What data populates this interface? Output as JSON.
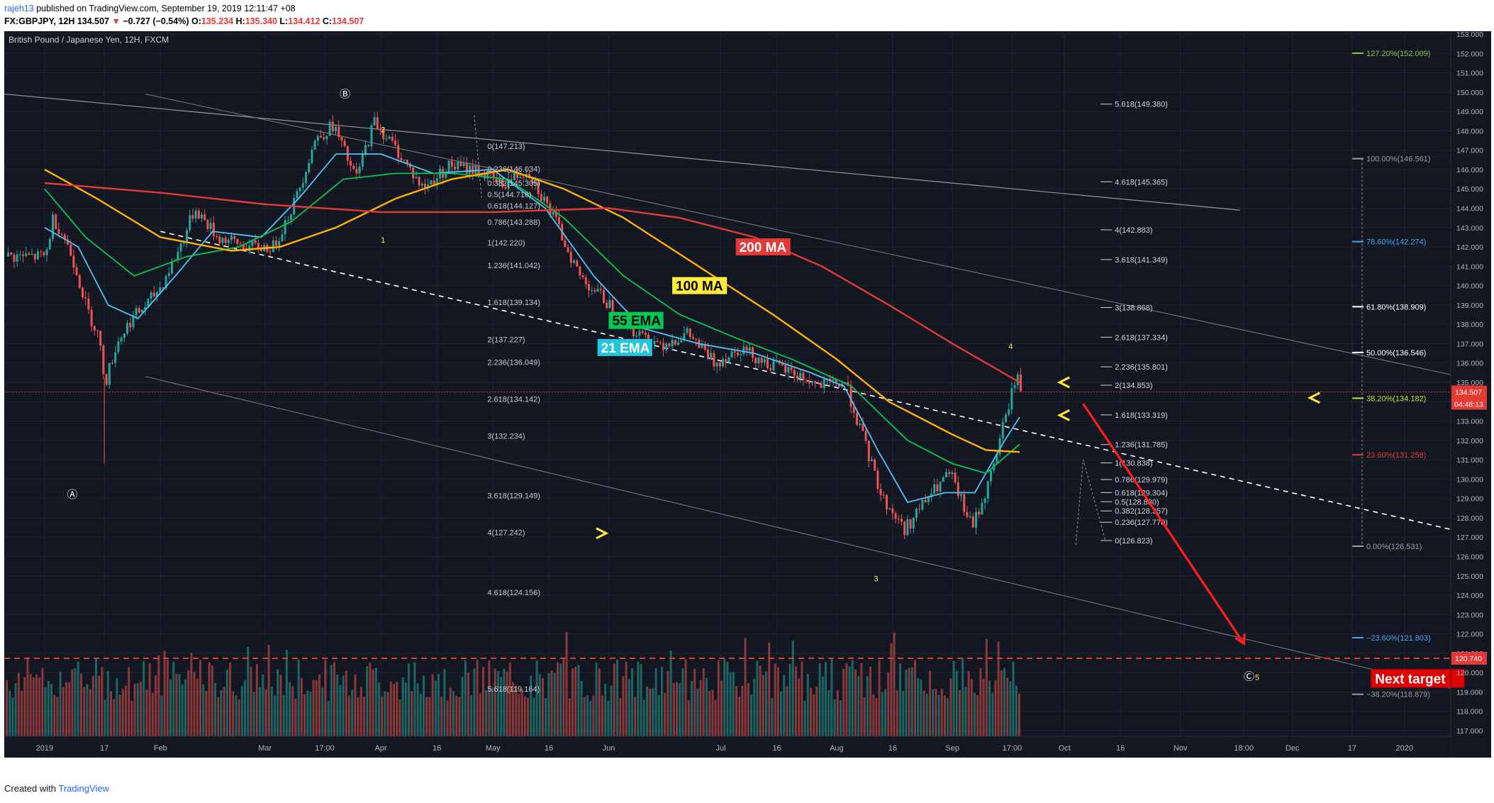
{
  "header": {
    "author": "rajeh13",
    "published": "published on TradingView.com, September 19, 2019 12:11:47 +08",
    "symbol": "FX:GBPJPY, 12H",
    "last": "134.507",
    "change_arrow": "▼",
    "change": "−0.727 (−0.54%)",
    "o_label": "O:",
    "o": "135.234",
    "h_label": "H:",
    "h": "135.340",
    "l_label": "L:",
    "l": "134.412",
    "c_label": "C:",
    "c": "134.507"
  },
  "footer": {
    "created": "Created with",
    "brand": "TradingView"
  },
  "chart_data": {
    "type": "candlestick",
    "title": "British Pound / Japanese Yen, 12H, FXCM",
    "ylim": [
      117,
      153
    ],
    "y_ticks": [
      "153.000",
      "152.000",
      "151.000",
      "150.000",
      "149.000",
      "148.000",
      "147.000",
      "146.000",
      "145.000",
      "144.000",
      "143.000",
      "142.000",
      "141.000",
      "140.000",
      "139.000",
      "138.000",
      "137.000",
      "136.000",
      "135.000",
      "134.000",
      "133.000",
      "132.000",
      "131.000",
      "130.000",
      "129.000",
      "128.000",
      "127.000",
      "126.000",
      "125.000",
      "124.000",
      "123.000",
      "122.000",
      "121.000",
      "120.000",
      "119.000",
      "118.000",
      "117.000"
    ],
    "x_ticks": [
      "2019",
      "17",
      "Feb",
      "Mar",
      "17:00",
      "Apr",
      "16",
      "May",
      "16",
      "Jun",
      "Jul",
      "16",
      "Aug",
      "16",
      "Sep",
      "17:00",
      "Oct",
      "16",
      "Nov",
      "18:00",
      "Dec",
      "17",
      "2020"
    ],
    "price_path": [
      {
        "x": "2019-01-01",
        "y": 141.5
      },
      {
        "x": "2019-01-03",
        "y": 143.5
      },
      {
        "x": "2019-01-06",
        "y": 142.5
      },
      {
        "x": "2019-01-09",
        "y": 141.0
      },
      {
        "x": "2019-01-12",
        "y": 138.8
      },
      {
        "x": "2019-01-15",
        "y": 137.5
      },
      {
        "x": "2019-01-17",
        "y": 135.0
      },
      {
        "x": "2019-01-20",
        "y": 137.0
      },
      {
        "x": "2019-01-24",
        "y": 138.3
      },
      {
        "x": "2019-01-28",
        "y": 139.0
      },
      {
        "x": "2019-02-01",
        "y": 140.0
      },
      {
        "x": "2019-02-06",
        "y": 142.0
      },
      {
        "x": "2019-02-10",
        "y": 144.0
      },
      {
        "x": "2019-02-16",
        "y": 142.5
      },
      {
        "x": "2019-02-24",
        "y": 142.0
      },
      {
        "x": "2019-03-03",
        "y": 142.0
      },
      {
        "x": "2019-03-09",
        "y": 144.5
      },
      {
        "x": "2019-03-14",
        "y": 147.5
      },
      {
        "x": "2019-03-19",
        "y": 148.3
      },
      {
        "x": "2019-03-25",
        "y": 145.5
      },
      {
        "x": "2019-03-30",
        "y": 148.5
      },
      {
        "x": "2019-04-05",
        "y": 147.0
      },
      {
        "x": "2019-04-12",
        "y": 145.0
      },
      {
        "x": "2019-04-19",
        "y": 146.2
      },
      {
        "x": "2019-04-26",
        "y": 146.0
      },
      {
        "x": "2019-05-03",
        "y": 145.2
      },
      {
        "x": "2019-05-10",
        "y": 146.0
      },
      {
        "x": "2019-05-17",
        "y": 143.5
      },
      {
        "x": "2019-05-24",
        "y": 140.5
      },
      {
        "x": "2019-06-01",
        "y": 139.0
      },
      {
        "x": "2019-06-08",
        "y": 137.5
      },
      {
        "x": "2019-06-15",
        "y": 137.0
      },
      {
        "x": "2019-06-22",
        "y": 137.5
      },
      {
        "x": "2019-06-29",
        "y": 136.0
      },
      {
        "x": "2019-07-06",
        "y": 136.8
      },
      {
        "x": "2019-07-13",
        "y": 136.0
      },
      {
        "x": "2019-07-20",
        "y": 135.5
      },
      {
        "x": "2019-07-27",
        "y": 134.8
      },
      {
        "x": "2019-08-03",
        "y": 135.0
      },
      {
        "x": "2019-08-08",
        "y": 132.0
      },
      {
        "x": "2019-08-13",
        "y": 129.0
      },
      {
        "x": "2019-08-19",
        "y": 127.4
      },
      {
        "x": "2019-08-25",
        "y": 129.0
      },
      {
        "x": "2019-08-31",
        "y": 130.3
      },
      {
        "x": "2019-09-06",
        "y": 127.5
      },
      {
        "x": "2019-09-10",
        "y": 129.5
      },
      {
        "x": "2019-09-14",
        "y": 132.5
      },
      {
        "x": "2019-09-18",
        "y": 135.5
      },
      {
        "x": "2019-09-19",
        "y": 134.507
      }
    ],
    "series": [
      {
        "name": "21 EMA",
        "color": "#4fc3f7",
        "points": [
          {
            "x": "2019-01-01",
            "y": 143.0
          },
          {
            "x": "2019-01-10",
            "y": 142.0
          },
          {
            "x": "2019-01-18",
            "y": 139.0
          },
          {
            "x": "2019-01-26",
            "y": 138.3
          },
          {
            "x": "2019-02-05",
            "y": 140.5
          },
          {
            "x": "2019-02-15",
            "y": 142.8
          },
          {
            "x": "2019-02-28",
            "y": 142.5
          },
          {
            "x": "2019-03-10",
            "y": 144.5
          },
          {
            "x": "2019-03-20",
            "y": 146.8
          },
          {
            "x": "2019-04-01",
            "y": 146.8
          },
          {
            "x": "2019-04-15",
            "y": 145.8
          },
          {
            "x": "2019-05-01",
            "y": 146.0
          },
          {
            "x": "2019-05-15",
            "y": 144.0
          },
          {
            "x": "2019-05-28",
            "y": 140.5
          },
          {
            "x": "2019-06-10",
            "y": 137.8
          },
          {
            "x": "2019-06-25",
            "y": 137.0
          },
          {
            "x": "2019-07-10",
            "y": 136.5
          },
          {
            "x": "2019-07-25",
            "y": 135.5
          },
          {
            "x": "2019-08-03",
            "y": 134.8
          },
          {
            "x": "2019-08-12",
            "y": 131.5
          },
          {
            "x": "2019-08-20",
            "y": 128.8
          },
          {
            "x": "2019-08-30",
            "y": 129.3
          },
          {
            "x": "2019-09-07",
            "y": 129.3
          },
          {
            "x": "2019-09-15",
            "y": 132.0
          },
          {
            "x": "2019-09-19",
            "y": 133.2
          }
        ]
      },
      {
        "name": "55 EMA",
        "color": "#00c853",
        "points": [
          {
            "x": "2019-01-01",
            "y": 145.0
          },
          {
            "x": "2019-01-12",
            "y": 142.5
          },
          {
            "x": "2019-01-25",
            "y": 140.5
          },
          {
            "x": "2019-02-08",
            "y": 141.5
          },
          {
            "x": "2019-02-22",
            "y": 142.0
          },
          {
            "x": "2019-03-08",
            "y": 143.3
          },
          {
            "x": "2019-03-22",
            "y": 145.5
          },
          {
            "x": "2019-04-05",
            "y": 145.8
          },
          {
            "x": "2019-04-20",
            "y": 145.8
          },
          {
            "x": "2019-05-05",
            "y": 145.5
          },
          {
            "x": "2019-05-20",
            "y": 143.5
          },
          {
            "x": "2019-06-05",
            "y": 140.5
          },
          {
            "x": "2019-06-20",
            "y": 138.5
          },
          {
            "x": "2019-07-05",
            "y": 137.3
          },
          {
            "x": "2019-07-20",
            "y": 136.2
          },
          {
            "x": "2019-08-05",
            "y": 134.8
          },
          {
            "x": "2019-08-20",
            "y": 132.0
          },
          {
            "x": "2019-09-01",
            "y": 130.8
          },
          {
            "x": "2019-09-10",
            "y": 130.3
          },
          {
            "x": "2019-09-19",
            "y": 131.8
          }
        ]
      },
      {
        "name": "100 MA",
        "color": "#ffb300",
        "points": [
          {
            "x": "2019-01-01",
            "y": 146.0
          },
          {
            "x": "2019-01-15",
            "y": 144.5
          },
          {
            "x": "2019-02-01",
            "y": 142.5
          },
          {
            "x": "2019-02-20",
            "y": 141.8
          },
          {
            "x": "2019-03-05",
            "y": 142.0
          },
          {
            "x": "2019-03-20",
            "y": 143.0
          },
          {
            "x": "2019-04-05",
            "y": 144.5
          },
          {
            "x": "2019-04-20",
            "y": 145.5
          },
          {
            "x": "2019-05-05",
            "y": 146.0
          },
          {
            "x": "2019-05-20",
            "y": 145.0
          },
          {
            "x": "2019-06-05",
            "y": 143.5
          },
          {
            "x": "2019-06-25",
            "y": 141.0
          },
          {
            "x": "2019-07-15",
            "y": 138.5
          },
          {
            "x": "2019-08-01",
            "y": 136.2
          },
          {
            "x": "2019-08-15",
            "y": 134.0
          },
          {
            "x": "2019-09-01",
            "y": 132.3
          },
          {
            "x": "2019-09-10",
            "y": 131.5
          },
          {
            "x": "2019-09-19",
            "y": 131.4
          }
        ]
      },
      {
        "name": "200 MA",
        "color": "#e53935",
        "points": [
          {
            "x": "2019-01-01",
            "y": 145.3
          },
          {
            "x": "2019-02-01",
            "y": 144.8
          },
          {
            "x": "2019-03-01",
            "y": 144.2
          },
          {
            "x": "2019-04-01",
            "y": 143.8
          },
          {
            "x": "2019-05-01",
            "y": 143.8
          },
          {
            "x": "2019-06-01",
            "y": 144.0
          },
          {
            "x": "2019-06-20",
            "y": 143.5
          },
          {
            "x": "2019-07-10",
            "y": 142.5
          },
          {
            "x": "2019-07-28",
            "y": 141.0
          },
          {
            "x": "2019-08-15",
            "y": 139.0
          },
          {
            "x": "2019-09-01",
            "y": 137.0
          },
          {
            "x": "2019-09-19",
            "y": 135.0
          }
        ]
      }
    ],
    "ma_labels": [
      {
        "text": "200 MA",
        "bg": "#e53935",
        "fg": "#ffffff",
        "x": "2019-07-05",
        "y": 142.0
      },
      {
        "text": "100 MA",
        "bg": "#ffeb3b",
        "fg": "#000000",
        "x": "2019-06-18",
        "y": 140.0
      },
      {
        "text": "55 EMA",
        "bg": "#00c853",
        "fg": "#000000",
        "x": "2019-06-01",
        "y": 138.2
      },
      {
        "text": "21 EMA",
        "bg": "#26c6da",
        "fg": "#ffffff",
        "x": "2019-05-29",
        "y": 136.8
      }
    ],
    "fib_left": {
      "x": "2019-04-28",
      "levels": [
        {
          "label": "0(147.213)",
          "v": 147.213
        },
        {
          "label": "0.236(146.034)",
          "v": 146.034
        },
        {
          "label": "0.382(145.305)",
          "v": 145.305
        },
        {
          "label": "0.5(144.716)",
          "v": 144.716
        },
        {
          "label": "0.618(144.127)",
          "v": 144.127
        },
        {
          "label": "0.786(143.288)",
          "v": 143.288
        },
        {
          "label": "1(142.220)",
          "v": 142.22
        },
        {
          "label": "1.236(141.042)",
          "v": 141.042
        },
        {
          "label": "1.618(139.134)",
          "v": 139.134
        },
        {
          "label": "2(137.227)",
          "v": 137.227
        },
        {
          "label": "2.236(136.049)",
          "v": 136.049
        },
        {
          "label": "2.618(134.142)",
          "v": 134.142
        },
        {
          "label": "3(132.234)",
          "v": 132.234
        },
        {
          "label": "3.618(129.149)",
          "v": 129.149
        },
        {
          "label": "4(127.242)",
          "v": 127.242
        },
        {
          "label": "4.618(124.156)",
          "v": 124.156
        },
        {
          "label": "5.618(119.164)",
          "v": 119.164
        }
      ]
    },
    "fib_right": {
      "x": "2019-10-16",
      "levels": [
        {
          "label": "5.618(149.380)",
          "v": 149.38
        },
        {
          "label": "4.618(145.365)",
          "v": 145.365
        },
        {
          "label": "4(142.883)",
          "v": 142.883
        },
        {
          "label": "3.618(141.349)",
          "v": 141.349
        },
        {
          "label": "3(138.868)",
          "v": 138.868
        },
        {
          "label": "2.618(137.334)",
          "v": 137.334
        },
        {
          "label": "2.236(135.801)",
          "v": 135.801
        },
        {
          "label": "2(134.853)",
          "v": 134.853
        },
        {
          "label": "1.618(133.319)",
          "v": 133.319
        },
        {
          "label": "1.236(131.785)",
          "v": 131.785
        },
        {
          "label": "1(130.838)",
          "v": 130.838
        },
        {
          "label": "0.786(129.979)",
          "v": 129.979
        },
        {
          "label": "0.618(129.304)",
          "v": 129.304
        },
        {
          "label": "0.5(128.830)",
          "v": 128.83
        },
        {
          "label": "0.382(128.357)",
          "v": 128.357
        },
        {
          "label": "0.236(127.770)",
          "v": 127.77
        },
        {
          "label": "0(126.823)",
          "v": 126.823
        }
      ]
    },
    "fib_pct": {
      "x": "2019-12-17",
      "levels": [
        {
          "label": "127.20%(152.009)",
          "v": 152.009,
          "color": "#8bc34a"
        },
        {
          "label": "100.00%(146.561)",
          "v": 146.561,
          "color": "#9e9e9e"
        },
        {
          "label": "78.60%(142.274)",
          "v": 142.274,
          "color": "#42a5f5"
        },
        {
          "label": "61.80%(138.909)",
          "v": 138.909,
          "color": "#ffffff"
        },
        {
          "label": "50.00%(136.546)",
          "v": 136.546,
          "color": "#ffffff"
        },
        {
          "label": "38.20%(134.182)",
          "v": 134.182,
          "color": "#cddc39"
        },
        {
          "label": "23.60%(131.258)",
          "v": 131.258,
          "color": "#e53935"
        },
        {
          "label": "0.00%(126.531)",
          "v": 126.531,
          "color": "#9e9e9e"
        },
        {
          "label": "−23.60%(121.803)",
          "v": 121.803,
          "color": "#42a5f5"
        },
        {
          "label": "−38.20%(118.879)",
          "v": 118.879,
          "color": "#9e9e9e"
        }
      ]
    },
    "wave_labels": [
      {
        "text": "Ⓐ",
        "x": "2019-01-07",
        "y": 129.2,
        "color": "#ffffff"
      },
      {
        "text": "Ⓑ",
        "x": "2019-03-21",
        "y": 149.9,
        "color": "#ffffff"
      },
      {
        "text": "Ⓒ",
        "x": "2019-11-18",
        "y": 119.8,
        "color": "#ffffff"
      },
      {
        "text": "1",
        "x": "2019-04-01",
        "y": 142.4,
        "color": "#ffeb3b"
      },
      {
        "text": "2",
        "x": "2019-04-01",
        "y": 148.1,
        "color": "#ffeb3b"
      },
      {
        "text": "3",
        "x": "2019-08-11",
        "y": 124.9,
        "color": "#ffeb3b"
      },
      {
        "text": "4",
        "x": "2019-09-16",
        "y": 136.9,
        "color": "#ffeb3b"
      },
      {
        "text": "5",
        "x": "2019-11-21",
        "y": 119.8,
        "color": "#ffeb3b"
      }
    ],
    "next_target": {
      "text": "Next target",
      "x": "2019-12-22",
      "y": 119.7
    },
    "target_level": 120.74,
    "last_price": 134.507,
    "price_labels": {
      "last": "134.507",
      "countdown": "04:48:13",
      "target": "120.740"
    }
  }
}
